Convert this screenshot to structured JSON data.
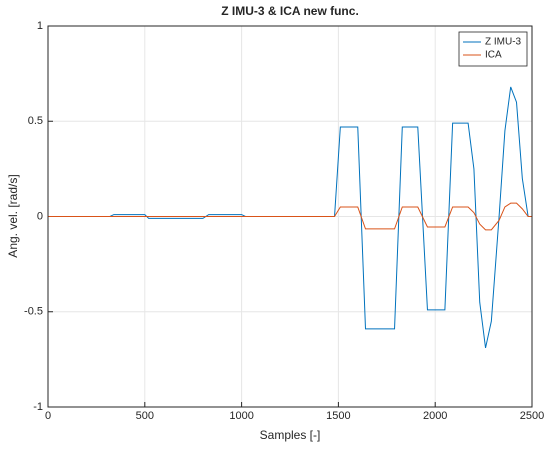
{
  "chart_data": {
    "type": "line",
    "title": "Z IMU-3 & ICA new func.",
    "x_label": "Samples [-]",
    "y_label": "Ang. vel. [rad/s]",
    "x": [
      0,
      320,
      340,
      500,
      520,
      800,
      830,
      1000,
      1020,
      1480,
      1510,
      1600,
      1640,
      1790,
      1830,
      1910,
      1960,
      2050,
      2090,
      2170,
      2200,
      2230,
      2260,
      2290,
      2330,
      2360,
      2390,
      2420,
      2450,
      2480,
      2500
    ],
    "series": [
      {
        "name": "Z IMU-3",
        "color": "#0072bd",
        "values": [
          0,
          0,
          0.01,
          0.01,
          -0.01,
          -0.01,
          0.01,
          0.01,
          0,
          0,
          0.47,
          0.47,
          -0.59,
          -0.59,
          0.47,
          0.47,
          -0.49,
          -0.49,
          0.49,
          0.49,
          0.25,
          -0.45,
          -0.69,
          -0.55,
          0,
          0.45,
          0.68,
          0.6,
          0.2,
          0,
          0
        ]
      },
      {
        "name": "ICA",
        "color": "#d95319",
        "values": [
          0,
          0,
          0,
          0,
          0,
          0,
          0,
          0,
          0,
          0,
          0.05,
          0.05,
          -0.065,
          -0.065,
          0.05,
          0.05,
          -0.055,
          -0.055,
          0.05,
          0.05,
          0.02,
          -0.04,
          -0.07,
          -0.07,
          -0.02,
          0.05,
          0.07,
          0.07,
          0.04,
          0,
          0
        ]
      }
    ],
    "xlim": [
      0,
      2500
    ],
    "xticks": [
      0,
      500,
      1000,
      1500,
      2000,
      2500
    ],
    "ylim": [
      -1,
      1
    ],
    "yticks": [
      -1,
      -0.5,
      0,
      0.5,
      1
    ],
    "grid": true,
    "legend": "northeast"
  }
}
